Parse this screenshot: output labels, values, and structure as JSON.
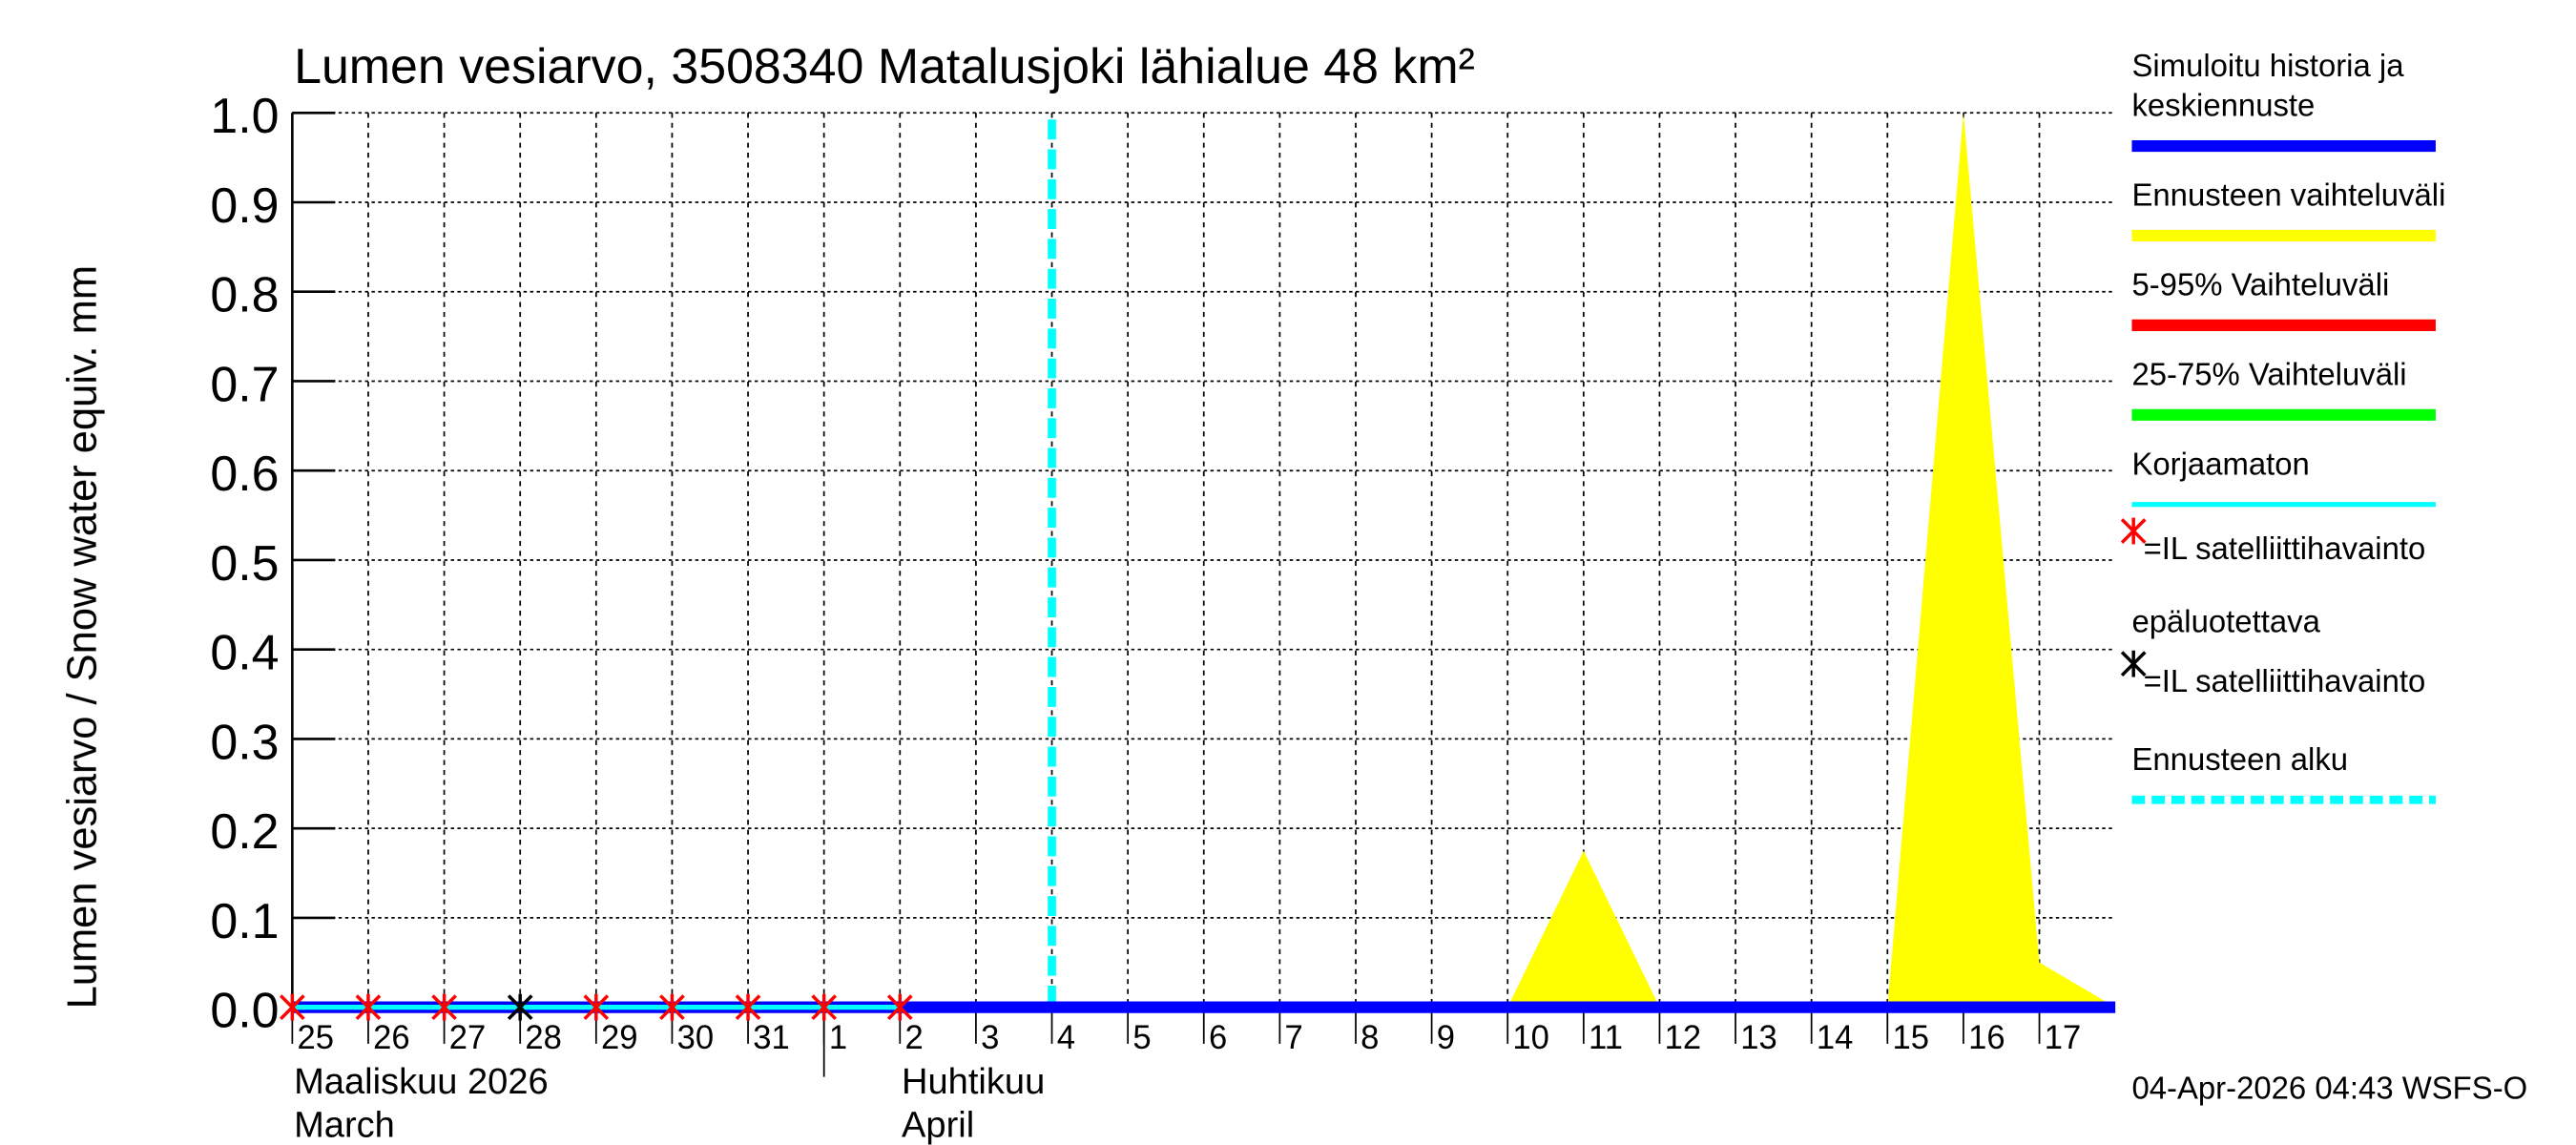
{
  "chart_data": {
    "type": "area",
    "title": "Lumen vesiarvo, 3508340 Matalusjoki lähialue 48 km²",
    "ylabel": "Lumen vesiarvo / Snow water equiv.    mm",
    "ylim": [
      0,
      1.0
    ],
    "yticks": [
      "0.0",
      "0.1",
      "0.2",
      "0.3",
      "0.4",
      "0.5",
      "0.6",
      "0.7",
      "0.8",
      "0.9",
      "1.0"
    ],
    "xlim_days": [
      0,
      24
    ],
    "xtick_labels": [
      "25",
      "26",
      "27",
      "28",
      "29",
      "30",
      "31",
      "1",
      "2",
      "3",
      "4",
      "5",
      "6",
      "7",
      "8",
      "9",
      "10",
      "11",
      "12",
      "13",
      "14",
      "15",
      "16",
      "17"
    ],
    "month_labels": [
      {
        "day": 0,
        "line1": "Maaliskuu 2026",
        "line2": "March"
      },
      {
        "day": 8,
        "line1": "Huhtikuu",
        "line2": "April"
      }
    ],
    "month_boundary_day": 7,
    "forecast_start_day": 10,
    "series": [
      {
        "name": "Ennusteen vaihteluväli",
        "color": "#ffff00",
        "x": [
          0,
          16,
          17,
          18,
          21,
          22,
          23,
          24
        ],
        "y": [
          0,
          0,
          0.175,
          0,
          0,
          1.0,
          0.05,
          0
        ]
      },
      {
        "name": "Simuloitu historia ja keskiennuste",
        "color": "#0000ff",
        "x": [
          0,
          24
        ],
        "y": [
          0,
          0
        ]
      },
      {
        "name": "Korjaamaton",
        "color": "#00ffff",
        "x": [
          0,
          8
        ],
        "y": [
          0,
          0
        ]
      }
    ],
    "markers": [
      {
        "day": 0,
        "type": "red"
      },
      {
        "day": 1,
        "type": "red"
      },
      {
        "day": 2,
        "type": "red"
      },
      {
        "day": 3,
        "type": "black"
      },
      {
        "day": 4,
        "type": "red"
      },
      {
        "day": 5,
        "type": "red"
      },
      {
        "day": 6,
        "type": "red"
      },
      {
        "day": 7,
        "type": "red"
      },
      {
        "day": 8,
        "type": "red"
      }
    ],
    "legend": [
      {
        "label": "Simuloitu historia ja\nkeskiennuste",
        "color": "#0000ff",
        "style": "line"
      },
      {
        "label": "Ennusteen vaihteluväli",
        "color": "#ffff00",
        "style": "line"
      },
      {
        "label": "5-95% Vaihteluväli",
        "color": "#ff0000",
        "style": "line"
      },
      {
        "label": "25-75% Vaihteluväli",
        "color": "#00ff00",
        "style": "line"
      },
      {
        "label": "Korjaamaton",
        "color": "#00ffff",
        "style": "thin"
      },
      {
        "label": "=IL satelliittihavainto",
        "color": "#ff0000",
        "style": "star"
      },
      {
        "label": "epäluotettava",
        "color": "",
        "style": "text"
      },
      {
        "label": "=IL satelliittihavainto",
        "color": "#000000",
        "style": "star"
      },
      {
        "label": "Ennusteen alku",
        "color": "#00ffff",
        "style": "dash"
      }
    ],
    "legend_position": "right"
  },
  "footer": "04-Apr-2026 04:43 WSFS-O"
}
